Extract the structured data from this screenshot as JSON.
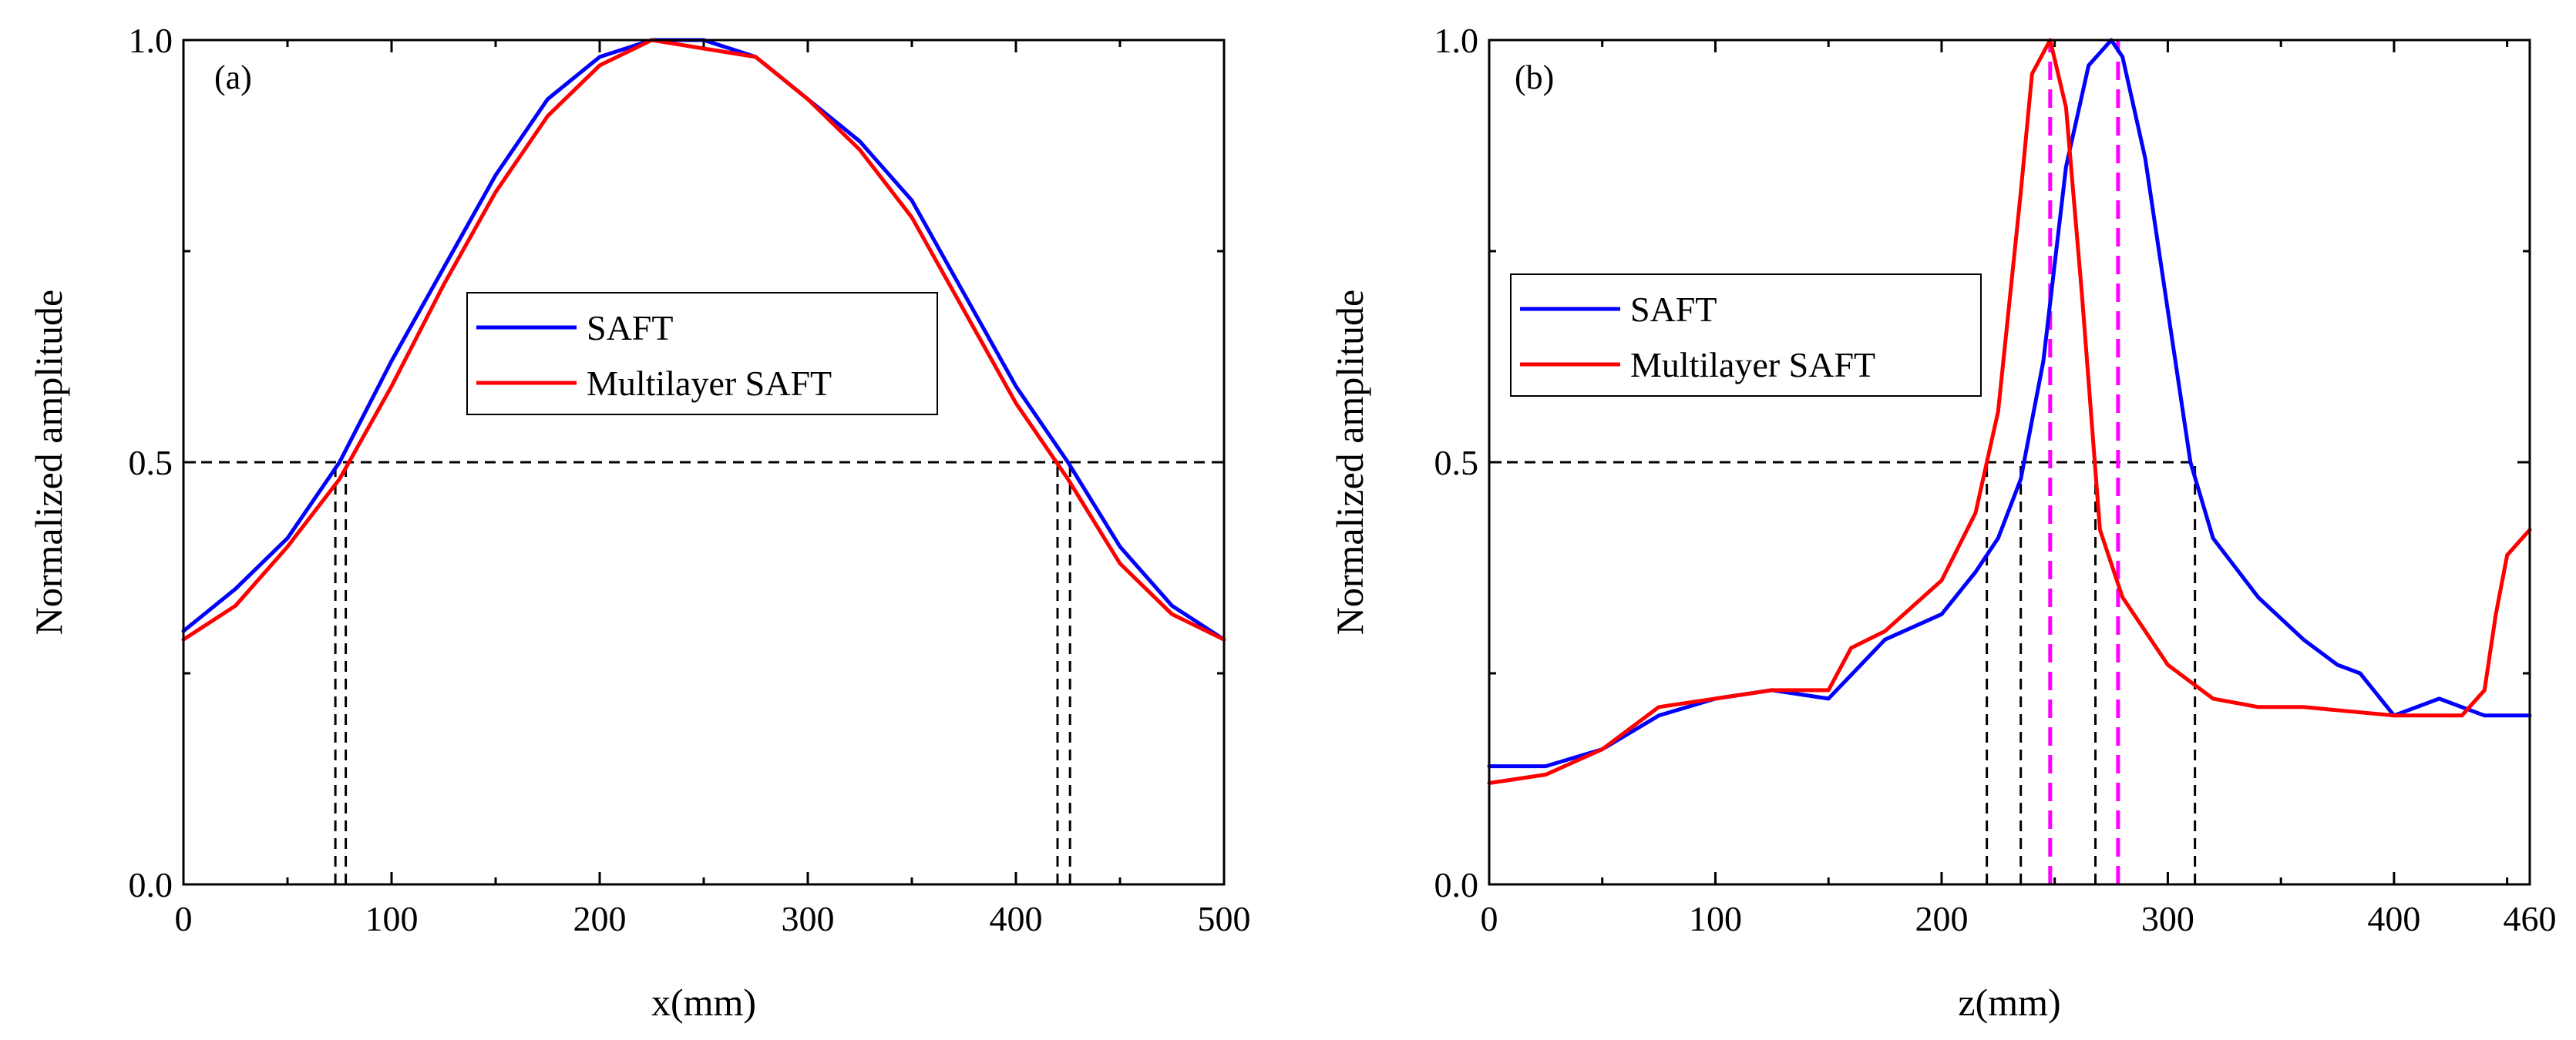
{
  "colors": {
    "saft": "#0000ff",
    "multilayer": "#ff0000",
    "peak_marker": "#ff00ff",
    "guide": "#000000"
  },
  "chart_data": [
    {
      "type": "line",
      "panel_label": "(a)",
      "xlabel": "x(mm)",
      "ylabel": "Normalized amplitude",
      "xlim": [
        0,
        500
      ],
      "ylim": [
        0,
        1.0
      ],
      "xticks": [
        0,
        100,
        200,
        300,
        400,
        500
      ],
      "xtick_labels": [
        "0",
        "100",
        "200",
        "300",
        "400",
        "500"
      ],
      "yticks": [
        0.0,
        0.5,
        1.0
      ],
      "ytick_labels": [
        "0.0",
        "0.5",
        "1.0"
      ],
      "grid": false,
      "legend": {
        "position": "center",
        "entries": [
          "SAFT",
          "Multilayer SAFT"
        ]
      },
      "series": [
        {
          "name": "SAFT",
          "color": "#0000ff",
          "x": [
            0,
            25,
            50,
            75,
            100,
            125,
            150,
            175,
            200,
            225,
            250,
            275,
            300,
            325,
            350,
            375,
            400,
            425,
            450,
            475,
            500
          ],
          "y": [
            0.3,
            0.35,
            0.41,
            0.5,
            0.62,
            0.73,
            0.84,
            0.93,
            0.98,
            1.0,
            1.0,
            0.98,
            0.93,
            0.88,
            0.81,
            0.7,
            0.59,
            0.5,
            0.4,
            0.33,
            0.29
          ]
        },
        {
          "name": "Multilayer SAFT",
          "color": "#ff0000",
          "x": [
            0,
            25,
            50,
            75,
            100,
            125,
            150,
            175,
            200,
            225,
            250,
            275,
            300,
            325,
            350,
            375,
            400,
            425,
            450,
            475,
            500
          ],
          "y": [
            0.29,
            0.33,
            0.4,
            0.48,
            0.59,
            0.71,
            0.82,
            0.91,
            0.97,
            1.0,
            0.99,
            0.98,
            0.93,
            0.87,
            0.79,
            0.68,
            0.57,
            0.48,
            0.38,
            0.32,
            0.29
          ]
        }
      ],
      "reference_lines": [
        {
          "orientation": "horizontal",
          "y": 0.5,
          "x_range": [
            0,
            500
          ],
          "style": "dashed",
          "color": "#000000"
        },
        {
          "orientation": "vertical",
          "x": 73,
          "y_range": [
            0,
            0.5
          ],
          "style": "dashed",
          "color": "#000000"
        },
        {
          "orientation": "vertical",
          "x": 78,
          "y_range": [
            0,
            0.5
          ],
          "style": "dashed",
          "color": "#000000"
        },
        {
          "orientation": "vertical",
          "x": 420,
          "y_range": [
            0,
            0.5
          ],
          "style": "dashed",
          "color": "#000000"
        },
        {
          "orientation": "vertical",
          "x": 426,
          "y_range": [
            0,
            0.5
          ],
          "style": "dashed",
          "color": "#000000"
        }
      ]
    },
    {
      "type": "line",
      "panel_label": "(b)",
      "xlabel": "z(mm)",
      "ylabel": "Normalized amplitude",
      "xlim": [
        0,
        460
      ],
      "ylim": [
        0,
        1.0
      ],
      "xticks": [
        0,
        100,
        200,
        300,
        400,
        460
      ],
      "xtick_labels": [
        "0",
        "100",
        "200",
        "300",
        "400",
        "460"
      ],
      "yticks": [
        0.0,
        0.5,
        1.0
      ],
      "ytick_labels": [
        "0.0",
        "0.5",
        "1.0"
      ],
      "grid": false,
      "legend": {
        "position": "upper-left",
        "entries": [
          "SAFT",
          "Multilayer SAFT"
        ]
      },
      "series": [
        {
          "name": "SAFT",
          "color": "#0000ff",
          "x": [
            0,
            25,
            50,
            75,
            100,
            125,
            150,
            175,
            200,
            215,
            225,
            235,
            245,
            255,
            265,
            275,
            280,
            290,
            300,
            310,
            320,
            340,
            360,
            375,
            385,
            400,
            420,
            440,
            460
          ],
          "y": [
            0.14,
            0.14,
            0.16,
            0.2,
            0.22,
            0.23,
            0.22,
            0.29,
            0.32,
            0.37,
            0.41,
            0.48,
            0.62,
            0.85,
            0.97,
            1.0,
            0.98,
            0.86,
            0.68,
            0.5,
            0.41,
            0.34,
            0.29,
            0.26,
            0.25,
            0.2,
            0.22,
            0.2,
            0.2
          ]
        },
        {
          "name": "Multilayer SAFT",
          "color": "#ff0000",
          "x": [
            0,
            25,
            50,
            75,
            100,
            125,
            150,
            160,
            175,
            200,
            215,
            225,
            235,
            240,
            248,
            255,
            262,
            270,
            280,
            290,
            300,
            320,
            340,
            360,
            400,
            430,
            440,
            445,
            450,
            460
          ],
          "y": [
            0.12,
            0.13,
            0.16,
            0.21,
            0.22,
            0.23,
            0.23,
            0.28,
            0.3,
            0.36,
            0.44,
            0.56,
            0.82,
            0.96,
            1.0,
            0.92,
            0.7,
            0.42,
            0.34,
            0.3,
            0.26,
            0.22,
            0.21,
            0.21,
            0.2,
            0.2,
            0.23,
            0.32,
            0.39,
            0.42
          ]
        }
      ],
      "reference_lines": [
        {
          "orientation": "horizontal",
          "y": 0.5,
          "x_range": [
            0,
            312
          ],
          "style": "dashed",
          "color": "#000000"
        },
        {
          "orientation": "vertical",
          "x": 220,
          "y_range": [
            0,
            0.5
          ],
          "style": "dashed",
          "color": "#000000"
        },
        {
          "orientation": "vertical",
          "x": 235,
          "y_range": [
            0,
            0.5
          ],
          "style": "dashed",
          "color": "#000000"
        },
        {
          "orientation": "vertical",
          "x": 268,
          "y_range": [
            0,
            0.5
          ],
          "style": "dashed",
          "color": "#000000"
        },
        {
          "orientation": "vertical",
          "x": 312,
          "y_range": [
            0,
            0.5
          ],
          "style": "dashed",
          "color": "#000000"
        },
        {
          "orientation": "vertical",
          "x": 248,
          "y_range": [
            0,
            1.0
          ],
          "style": "dashed",
          "color": "#ff00ff"
        },
        {
          "orientation": "vertical",
          "x": 278,
          "y_range": [
            0,
            1.0
          ],
          "style": "dashed",
          "color": "#ff00ff"
        }
      ]
    }
  ]
}
